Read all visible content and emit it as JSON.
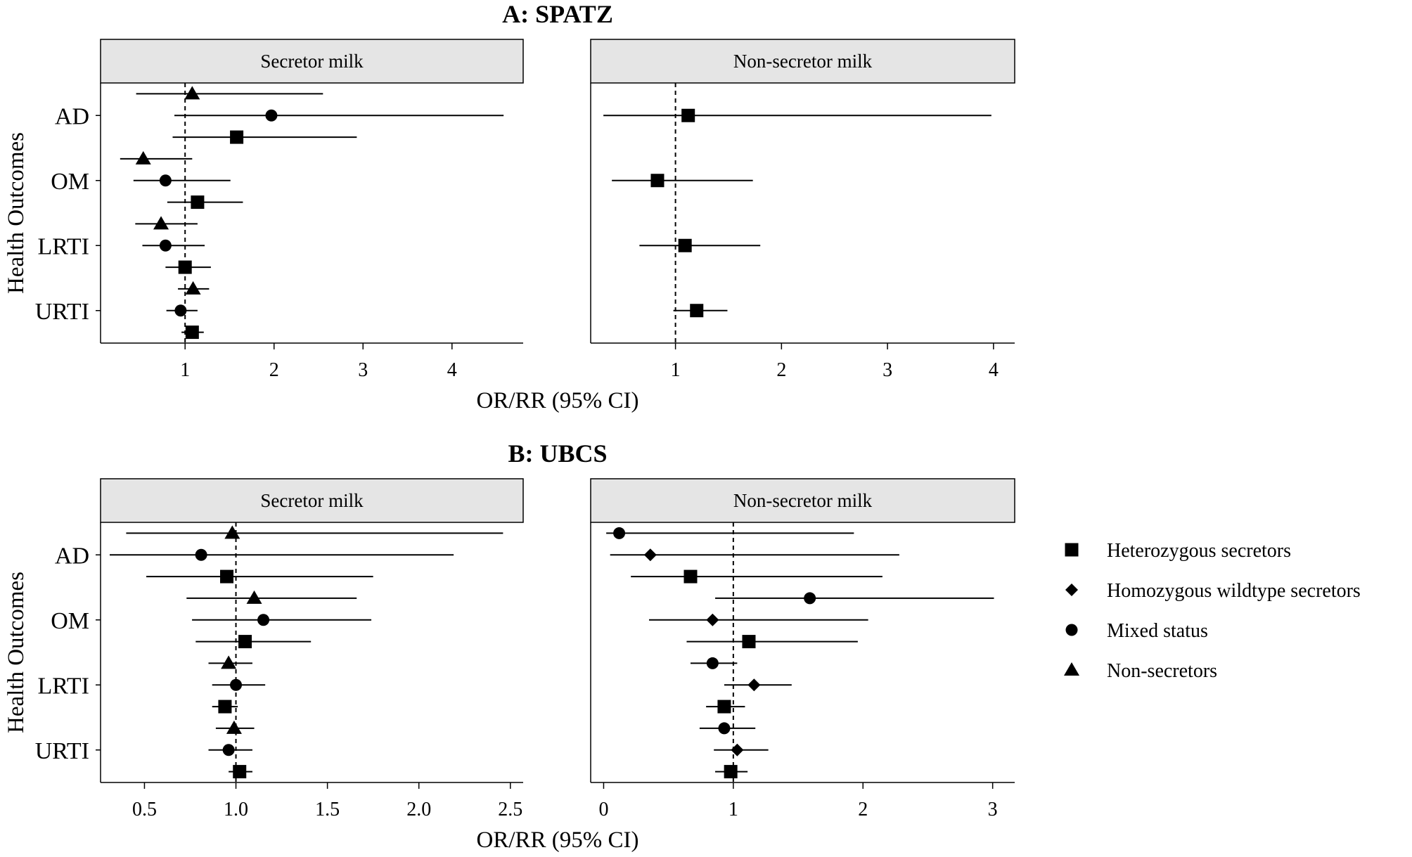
{
  "chart_data": [
    {
      "type": "forest",
      "title": "A: SPATZ",
      "ylabel": "Health Outcomes",
      "xlabel": "OR/RR (95% CI)",
      "categories": [
        "AD",
        "OM",
        "LRTI",
        "URTI"
      ],
      "panels": [
        {
          "strip": "Secretor milk",
          "xlim": [
            0.05,
            4.8
          ],
          "xticks": [
            1,
            2,
            3,
            4
          ],
          "reference_line": 1,
          "estimates": [
            {
              "outcome": "AD",
              "group": "Non-secretors",
              "est": 1.08,
              "lo": 0.45,
              "hi": 2.55
            },
            {
              "outcome": "AD",
              "group": "Mixed status",
              "est": 1.97,
              "lo": 0.88,
              "hi": 4.58
            },
            {
              "outcome": "AD",
              "group": "Heterozygous secretors",
              "est": 1.58,
              "lo": 0.86,
              "hi": 2.93
            },
            {
              "outcome": "OM",
              "group": "Non-secretors",
              "est": 0.53,
              "lo": 0.27,
              "hi": 1.08
            },
            {
              "outcome": "OM",
              "group": "Mixed status",
              "est": 0.78,
              "lo": 0.42,
              "hi": 1.51
            },
            {
              "outcome": "OM",
              "group": "Heterozygous secretors",
              "est": 1.14,
              "lo": 0.8,
              "hi": 1.65
            },
            {
              "outcome": "LRTI",
              "group": "Non-secretors",
              "est": 0.73,
              "lo": 0.44,
              "hi": 1.14
            },
            {
              "outcome": "LRTI",
              "group": "Mixed status",
              "est": 0.78,
              "lo": 0.52,
              "hi": 1.22
            },
            {
              "outcome": "LRTI",
              "group": "Heterozygous secretors",
              "est": 1.0,
              "lo": 0.78,
              "hi": 1.29
            },
            {
              "outcome": "URTI",
              "group": "Non-secretors",
              "est": 1.09,
              "lo": 0.92,
              "hi": 1.27
            },
            {
              "outcome": "URTI",
              "group": "Mixed status",
              "est": 0.95,
              "lo": 0.79,
              "hi": 1.14
            },
            {
              "outcome": "URTI",
              "group": "Heterozygous secretors",
              "est": 1.08,
              "lo": 0.96,
              "hi": 1.21
            }
          ]
        },
        {
          "strip": "Non-secretor milk",
          "xlim": [
            0.2,
            4.2
          ],
          "xticks": [
            1,
            2,
            3,
            4
          ],
          "reference_line": 1,
          "estimates": [
            {
              "outcome": "AD",
              "group": "Heterozygous secretors",
              "est": 1.12,
              "lo": 0.32,
              "hi": 3.98
            },
            {
              "outcome": "OM",
              "group": "Heterozygous secretors",
              "est": 0.83,
              "lo": 0.4,
              "hi": 1.73
            },
            {
              "outcome": "LRTI",
              "group": "Heterozygous secretors",
              "est": 1.09,
              "lo": 0.66,
              "hi": 1.8
            },
            {
              "outcome": "URTI",
              "group": "Heterozygous secretors",
              "est": 1.2,
              "lo": 0.98,
              "hi": 1.49
            }
          ]
        }
      ]
    },
    {
      "type": "forest",
      "title": "B: UBCS",
      "ylabel": "Health Outcomes",
      "xlabel": "OR/RR (95% CI)",
      "categories": [
        "AD",
        "OM",
        "LRTI",
        "URTI"
      ],
      "panels": [
        {
          "strip": "Secretor milk",
          "xlim": [
            0.26,
            2.57
          ],
          "xticks": [
            0.5,
            1.0,
            1.5,
            2.0,
            2.5
          ],
          "xtick_labels": [
            "0.5",
            "1.0",
            "1.5",
            "2.0",
            "2.5"
          ],
          "reference_line": 1,
          "estimates": [
            {
              "outcome": "AD",
              "group": "Non-secretors",
              "est": 0.98,
              "lo": 0.4,
              "hi": 2.46
            },
            {
              "outcome": "AD",
              "group": "Mixed status",
              "est": 0.81,
              "lo": 0.31,
              "hi": 2.19
            },
            {
              "outcome": "AD",
              "group": "Heterozygous secretors",
              "est": 0.95,
              "lo": 0.51,
              "hi": 1.75
            },
            {
              "outcome": "OM",
              "group": "Non-secretors",
              "est": 1.1,
              "lo": 0.73,
              "hi": 1.66
            },
            {
              "outcome": "OM",
              "group": "Mixed status",
              "est": 1.15,
              "lo": 0.76,
              "hi": 1.74
            },
            {
              "outcome": "OM",
              "group": "Heterozygous secretors",
              "est": 1.05,
              "lo": 0.78,
              "hi": 1.41
            },
            {
              "outcome": "LRTI",
              "group": "Non-secretors",
              "est": 0.96,
              "lo": 0.85,
              "hi": 1.09
            },
            {
              "outcome": "LRTI",
              "group": "Mixed status",
              "est": 1.0,
              "lo": 0.87,
              "hi": 1.16
            },
            {
              "outcome": "LRTI",
              "group": "Heterozygous secretors",
              "est": 0.94,
              "lo": 0.87,
              "hi": 1.01
            },
            {
              "outcome": "URTI",
              "group": "Non-secretors",
              "est": 0.99,
              "lo": 0.89,
              "hi": 1.1
            },
            {
              "outcome": "URTI",
              "group": "Mixed status",
              "est": 0.96,
              "lo": 0.85,
              "hi": 1.09
            },
            {
              "outcome": "URTI",
              "group": "Heterozygous secretors",
              "est": 1.02,
              "lo": 0.96,
              "hi": 1.09
            }
          ]
        },
        {
          "strip": "Non-secretor milk",
          "xlim": [
            -0.1,
            3.17
          ],
          "xticks": [
            0,
            1,
            2,
            3
          ],
          "reference_line": 1,
          "estimates": [
            {
              "outcome": "AD",
              "group": "Mixed status",
              "est": 0.12,
              "lo": 0.02,
              "hi": 1.93
            },
            {
              "outcome": "AD",
              "group": "Homozygous wildtype secretors",
              "est": 0.36,
              "lo": 0.05,
              "hi": 2.28
            },
            {
              "outcome": "AD",
              "group": "Heterozygous secretors",
              "est": 0.67,
              "lo": 0.21,
              "hi": 2.15
            },
            {
              "outcome": "OM",
              "group": "Mixed status",
              "est": 1.59,
              "lo": 0.86,
              "hi": 3.01
            },
            {
              "outcome": "OM",
              "group": "Homozygous wildtype secretors",
              "est": 0.84,
              "lo": 0.35,
              "hi": 2.04
            },
            {
              "outcome": "OM",
              "group": "Heterozygous secretors",
              "est": 1.12,
              "lo": 0.64,
              "hi": 1.96
            },
            {
              "outcome": "LRTI",
              "group": "Mixed status",
              "est": 0.84,
              "lo": 0.67,
              "hi": 1.03
            },
            {
              "outcome": "LRTI",
              "group": "Homozygous wildtype secretors",
              "est": 1.16,
              "lo": 0.93,
              "hi": 1.45
            },
            {
              "outcome": "LRTI",
              "group": "Heterozygous secretors",
              "est": 0.93,
              "lo": 0.79,
              "hi": 1.09
            },
            {
              "outcome": "URTI",
              "group": "Mixed status",
              "est": 0.93,
              "lo": 0.74,
              "hi": 1.17
            },
            {
              "outcome": "URTI",
              "group": "Homozygous wildtype secretors",
              "est": 1.03,
              "lo": 0.85,
              "hi": 1.27
            },
            {
              "outcome": "URTI",
              "group": "Heterozygous secretors",
              "est": 0.98,
              "lo": 0.86,
              "hi": 1.11
            }
          ]
        }
      ]
    }
  ],
  "legend": {
    "position": "right",
    "items": [
      {
        "label": "Heterozygous secretors",
        "shape": "square"
      },
      {
        "label": "Homozygous wildtype secretors",
        "shape": "diamond"
      },
      {
        "label": "Mixed status",
        "shape": "circle"
      },
      {
        "label": "Non-secretors",
        "shape": "triangle"
      }
    ]
  },
  "colors": {
    "strip_fill": "#e5e5e5",
    "ink": "#000000"
  }
}
